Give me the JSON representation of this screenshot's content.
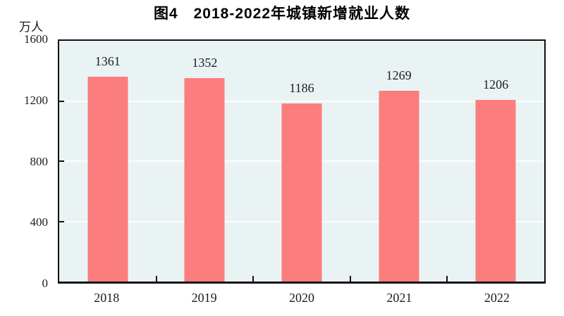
{
  "figure": {
    "title": "图4　2018-2022年城镇新增就业人数",
    "y_unit_label": "万人"
  },
  "chart_data": {
    "type": "bar",
    "title": "图4　2018-2022年城镇新增就业人数",
    "categories": [
      "2018",
      "2019",
      "2020",
      "2021",
      "2022"
    ],
    "values": [
      1361,
      1352,
      1186,
      1269,
      1206
    ],
    "xlabel": "",
    "ylabel": "万人",
    "ylim": [
      0,
      1600
    ],
    "yticks": [
      0,
      400,
      800,
      1200,
      1600
    ],
    "grid": true,
    "legend_position": "none",
    "colors": {
      "bar": "#FB7D7D",
      "plot_background": "#EAF3F4",
      "gridline": "#FDFEFE",
      "axis": "#111111",
      "text": "#1c1c1c"
    }
  }
}
